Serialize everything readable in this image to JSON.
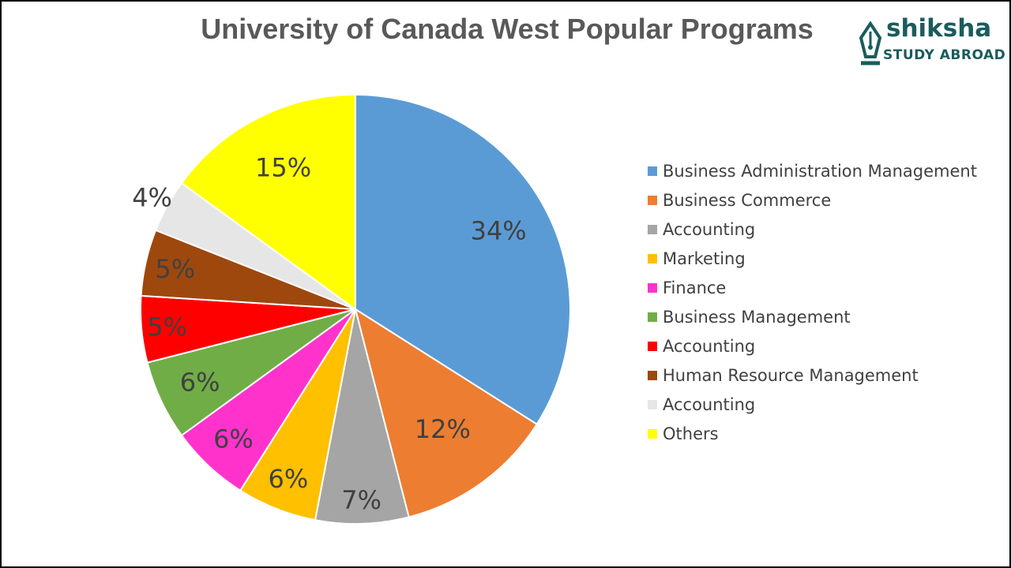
{
  "chart_data": {
    "type": "pie",
    "title": "University of Canada West Popular Programs",
    "legend_position": "right",
    "start_angle_deg": 0,
    "direction": "clockwise",
    "slices": [
      {
        "label": "Business Administration Management",
        "value": 34,
        "display": "34%",
        "color": "#5b9bd5"
      },
      {
        "label": "Business Commerce",
        "value": 12,
        "display": "12%",
        "color": "#ed7d31"
      },
      {
        "label": "Accounting",
        "value": 7,
        "display": "7%",
        "color": "#a5a5a5"
      },
      {
        "label": "Marketing",
        "value": 6,
        "display": "6%",
        "color": "#ffc000"
      },
      {
        "label": "Finance",
        "value": 6,
        "display": "6%",
        "color": "#ff33cc"
      },
      {
        "label": "Business Management",
        "value": 6,
        "display": "6%",
        "color": "#70ad47"
      },
      {
        "label": "Accounting",
        "value": 5,
        "display": "5%",
        "color": "#ff0000"
      },
      {
        "label": "Human Resource Management",
        "value": 5,
        "display": "5%",
        "color": "#9e480e"
      },
      {
        "label": "Accounting",
        "value": 4,
        "display": "4%",
        "color": "#e7e6e6"
      },
      {
        "label": "Others",
        "value": 15,
        "display": "15%",
        "color": "#ffff00"
      }
    ]
  },
  "logo": {
    "brand": "shiksha",
    "tagline": "STUDY ABROAD",
    "icon": "fountain-pen-nib-icon",
    "color": "#1a5c5c"
  }
}
